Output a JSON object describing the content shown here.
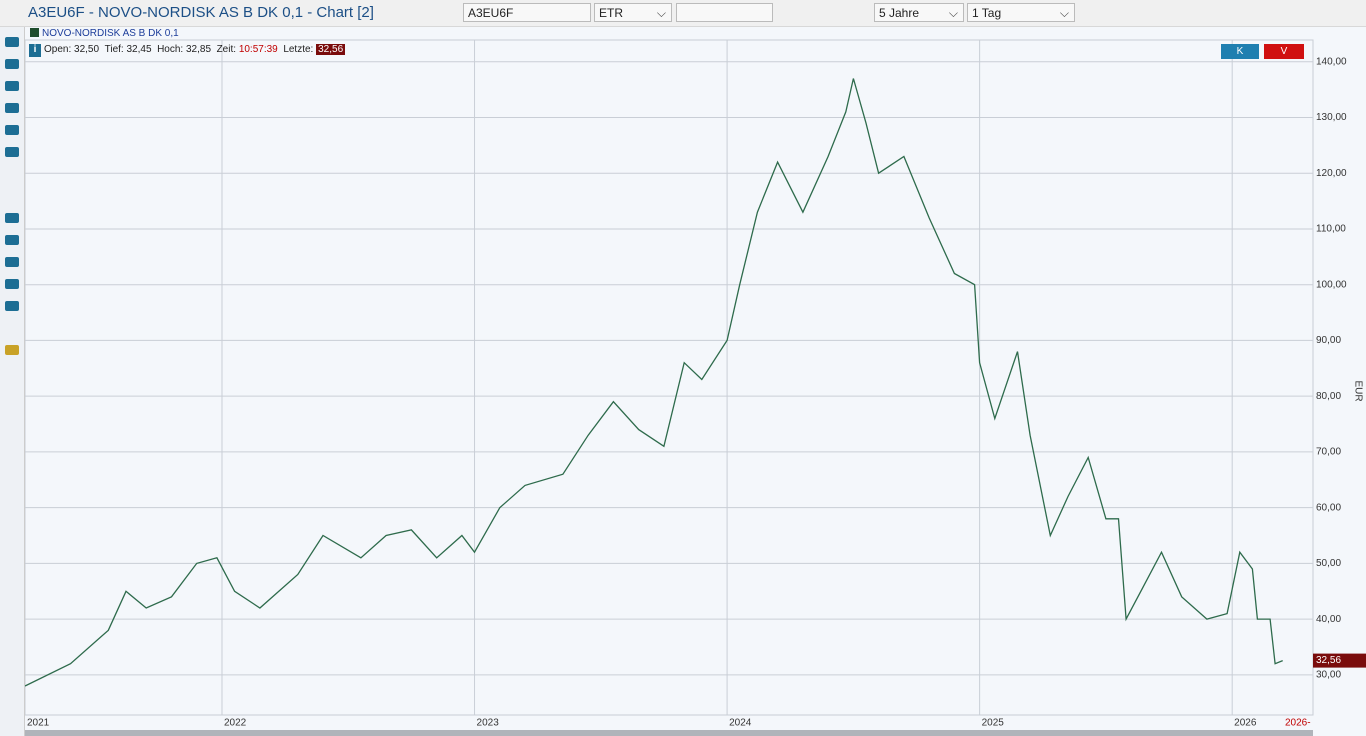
{
  "header": {
    "title": "A3EU6F - NOVO-NORDISK AS B  DK 0,1 - Chart [2]"
  },
  "toolbar": {
    "symbol": "A3EU6F",
    "exchange": "ETR",
    "period": "5 Jahre",
    "interval": "1 Tag"
  },
  "legend": {
    "name": "NOVO-NORDISK AS B  DK 0,1"
  },
  "info": {
    "open_label": "Open:",
    "open": "32,50",
    "low_label": "Tief:",
    "low": "32,45",
    "high_label": "Hoch:",
    "high": "32,85",
    "time_label": "Zeit:",
    "time": "10:57:39",
    "last_label": "Letzte:",
    "last": "32,56"
  },
  "buttons": {
    "buy": "K",
    "sell": "V"
  },
  "chart_data": {
    "type": "line",
    "color": "#2e6b4c",
    "y_axis_label": "EUR",
    "x_start_label": "2021",
    "x_end_label": "2026-",
    "xlim": [
      2021.22,
      2026.32
    ],
    "xticks": [
      {
        "value": 2022,
        "label": "2022"
      },
      {
        "value": 2023,
        "label": "2023"
      },
      {
        "value": 2024,
        "label": "2024"
      },
      {
        "value": 2025,
        "label": "2025"
      },
      {
        "value": 2026,
        "label": "2026"
      }
    ],
    "ylim": [
      22.8,
      143.9
    ],
    "yticks": [
      {
        "value": 30,
        "label": "30,00"
      },
      {
        "value": 40,
        "label": "40,00"
      },
      {
        "value": 50,
        "label": "50,00"
      },
      {
        "value": 60,
        "label": "60,00"
      },
      {
        "value": 70,
        "label": "70,00"
      },
      {
        "value": 80,
        "label": "80,00"
      },
      {
        "value": 90,
        "label": "90,00"
      },
      {
        "value": 100,
        "label": "100,00"
      },
      {
        "value": 110,
        "label": "110,00"
      },
      {
        "value": 120,
        "label": "120,00"
      },
      {
        "value": 130,
        "label": "130,00"
      },
      {
        "value": 140,
        "label": "140,00"
      }
    ],
    "grid": true,
    "price_marker": {
      "value": 32.56,
      "label": "32,56"
    },
    "x": [
      2021.22,
      2021.4,
      2021.55,
      2021.62,
      2021.7,
      2021.8,
      2021.9,
      2021.98,
      2022.05,
      2022.15,
      2022.3,
      2022.4,
      2022.55,
      2022.65,
      2022.75,
      2022.85,
      2022.95,
      2023.0,
      2023.1,
      2023.2,
      2023.35,
      2023.45,
      2023.55,
      2023.65,
      2023.75,
      2023.83,
      2023.9,
      2024.0,
      2024.05,
      2024.12,
      2024.2,
      2024.3,
      2024.4,
      2024.47,
      2024.5,
      2024.55,
      2024.6,
      2024.7,
      2024.8,
      2024.9,
      2024.98,
      2025.0,
      2025.06,
      2025.15,
      2025.2,
      2025.28,
      2025.35,
      2025.43,
      2025.5,
      2025.55,
      2025.58,
      2025.65,
      2025.72,
      2025.8,
      2025.9,
      2025.98,
      2026.03,
      2026.08,
      2026.1,
      2026.15,
      2026.17,
      2026.2
    ],
    "series": [
      {
        "values": [
          28,
          32,
          38,
          45,
          42,
          44,
          50,
          51,
          45,
          42,
          48,
          55,
          51,
          55,
          56,
          51,
          55,
          52,
          60,
          64,
          66,
          73,
          79,
          74,
          71,
          86,
          83,
          90,
          100,
          113,
          122,
          113,
          123,
          131,
          137,
          129,
          120,
          123,
          112,
          102,
          100,
          86,
          76,
          88,
          73,
          55,
          62,
          69,
          58,
          58,
          40,
          46,
          52,
          44,
          40,
          41,
          52,
          49,
          40,
          40,
          32,
          32.56
        ]
      }
    ]
  }
}
